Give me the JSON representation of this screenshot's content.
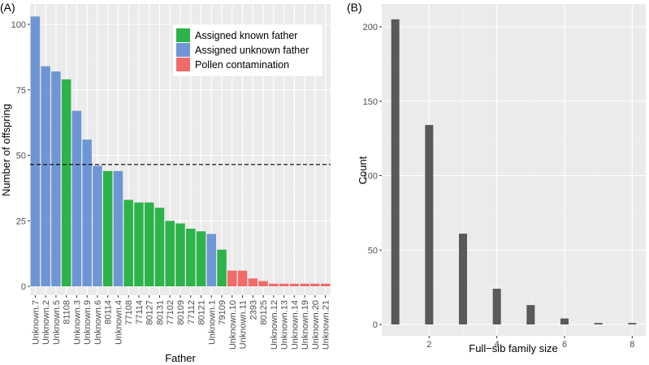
{
  "chart_data": [
    {
      "panel_label": "(A)",
      "type": "bar",
      "xlabel": "Father",
      "ylabel": "Number of offspring",
      "ylim": [
        0,
        110
      ],
      "y_ticks": [
        0,
        25,
        50,
        75,
        100
      ],
      "reference_line": {
        "y": 46.5,
        "style": "dashed"
      },
      "legend": [
        {
          "label": "Assigned known father",
          "key": "known",
          "color": "#2db34a"
        },
        {
          "label": "Assigned unknown father",
          "key": "unknown",
          "color": "#6f96d4"
        },
        {
          "label": "Pollen contamination",
          "key": "pollen",
          "color": "#f26b6b"
        }
      ],
      "bars": [
        {
          "category": "Unknown.7",
          "value": 103,
          "group": "unknown"
        },
        {
          "category": "Unknown.2",
          "value": 84,
          "group": "unknown"
        },
        {
          "category": "Unknown.5",
          "value": 82,
          "group": "unknown"
        },
        {
          "category": "81108",
          "value": 79,
          "group": "known"
        },
        {
          "category": "Unknown.3",
          "value": 67,
          "group": "unknown"
        },
        {
          "category": "Unknown.9",
          "value": 56,
          "group": "unknown"
        },
        {
          "category": "Unknown.6",
          "value": 46,
          "group": "unknown"
        },
        {
          "category": "80114",
          "value": 44,
          "group": "known"
        },
        {
          "category": "Unknown.4",
          "value": 44,
          "group": "unknown"
        },
        {
          "category": "77108",
          "value": 33,
          "group": "known"
        },
        {
          "category": "77114",
          "value": 32,
          "group": "known"
        },
        {
          "category": "80127",
          "value": 32,
          "group": "known"
        },
        {
          "category": "80131",
          "value": 30,
          "group": "known"
        },
        {
          "category": "77102",
          "value": 25,
          "group": "known"
        },
        {
          "category": "80109",
          "value": 24,
          "group": "known"
        },
        {
          "category": "77112",
          "value": 22,
          "group": "known"
        },
        {
          "category": "80121",
          "value": 21,
          "group": "known"
        },
        {
          "category": "Unknown.1",
          "value": 20,
          "group": "unknown"
        },
        {
          "category": "79109",
          "value": 14,
          "group": "known"
        },
        {
          "category": "Unknown.10",
          "value": 6,
          "group": "pollen"
        },
        {
          "category": "Unknown.11",
          "value": 6,
          "group": "pollen"
        },
        {
          "category": "2393",
          "value": 3,
          "group": "pollen"
        },
        {
          "category": "80125",
          "value": 2,
          "group": "pollen"
        },
        {
          "category": "Unknown.12",
          "value": 1,
          "group": "pollen"
        },
        {
          "category": "Unknown.13",
          "value": 1,
          "group": "pollen"
        },
        {
          "category": "Unknown.14",
          "value": 1,
          "group": "pollen"
        },
        {
          "category": "Unknown.19",
          "value": 1,
          "group": "pollen"
        },
        {
          "category": "Unknown.20",
          "value": 1,
          "group": "pollen"
        },
        {
          "category": "Unknown.21",
          "value": 1,
          "group": "pollen"
        }
      ]
    },
    {
      "panel_label": "(B)",
      "type": "bar",
      "xlabel": "Full−sib family size",
      "ylabel": "Count",
      "xlim": [
        0.6,
        8.4
      ],
      "ylim": [
        0,
        210
      ],
      "x_ticks": [
        2,
        4,
        6,
        8
      ],
      "y_ticks": [
        0,
        50,
        100,
        150,
        200
      ],
      "color": "#595959",
      "x": [
        1,
        2,
        3,
        4,
        5,
        6,
        7,
        8
      ],
      "values": [
        205,
        134,
        61,
        24,
        13,
        4,
        1,
        1
      ]
    }
  ]
}
